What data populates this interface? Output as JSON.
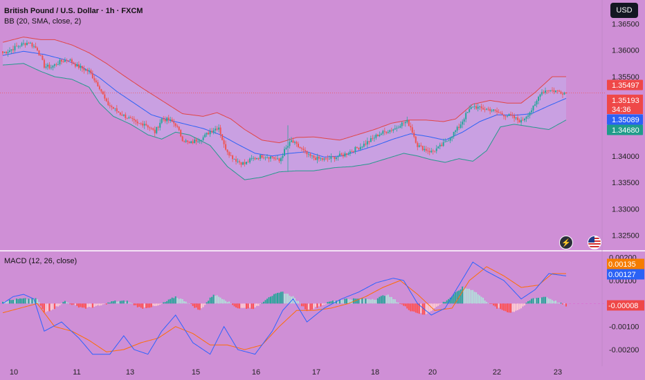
{
  "header": {
    "title": "British Pound / U.S. Dollar · 1h · FXCM",
    "indicator": "BB (20, SMA, close, 2)",
    "macd_label": "MACD (12, 26, close)",
    "currency_button": "USD"
  },
  "colors": {
    "background": "#cf8fd6",
    "up_candle": "#26a69a",
    "down_candle": "#ef5350",
    "bb_upper": "#e04545",
    "bb_lower": "#24998b",
    "bb_basis": "#2b62f5",
    "bb_fill": "#c7a6e6",
    "macd_line": "#2962ff",
    "signal_line": "#ff6d00",
    "hist_up_strong": "#26a69a",
    "hist_up_weak": "#b2dfdb",
    "hist_down_strong": "#ff5252",
    "hist_down_weak": "#ffcdd2"
  },
  "chart_data": [
    {
      "type": "candlestick",
      "title": "British Pound / U.S. Dollar · 1h · FXCM",
      "x_ticks": [
        "10",
        "11",
        "13",
        "15",
        "16",
        "17",
        "18",
        "20",
        "22",
        "23"
      ],
      "y_ticks": [
        "1.36500",
        "1.36000",
        "1.35500",
        "1.35000",
        "1.34500",
        "1.34000",
        "1.33500",
        "1.33000",
        "1.32500"
      ],
      "ylim": [
        1.3222,
        1.3695
      ],
      "close_anchors": [
        [
          0,
          1.3595
        ],
        [
          4,
          1.36
        ],
        [
          10,
          1.361
        ],
        [
          15,
          1.3615
        ],
        [
          20,
          1.3602
        ],
        [
          24,
          1.357
        ],
        [
          28,
          1.3568
        ],
        [
          33,
          1.3578
        ],
        [
          38,
          1.3583
        ],
        [
          43,
          1.357
        ],
        [
          50,
          1.356
        ],
        [
          56,
          1.353
        ],
        [
          60,
          1.35
        ],
        [
          64,
          1.349
        ],
        [
          68,
          1.348
        ],
        [
          72,
          1.3473
        ],
        [
          78,
          1.346
        ],
        [
          82,
          1.3462
        ],
        [
          88,
          1.3445
        ],
        [
          92,
          1.347
        ],
        [
          96,
          1.3468
        ],
        [
          100,
          1.346
        ],
        [
          104,
          1.3432
        ],
        [
          108,
          1.3423
        ],
        [
          112,
          1.343
        ],
        [
          116,
          1.3435
        ],
        [
          120,
          1.3447
        ],
        [
          125,
          1.3455
        ],
        [
          128,
          1.342
        ],
        [
          132,
          1.34
        ],
        [
          136,
          1.339
        ],
        [
          140,
          1.3385
        ],
        [
          144,
          1.3394
        ],
        [
          150,
          1.34
        ],
        [
          156,
          1.3398
        ],
        [
          160,
          1.339
        ],
        [
          163,
          1.341
        ],
        [
          167,
          1.3428
        ],
        [
          172,
          1.3415
        ],
        [
          177,
          1.34
        ],
        [
          182,
          1.3395
        ],
        [
          187,
          1.3393
        ],
        [
          192,
          1.3398
        ],
        [
          197,
          1.3402
        ],
        [
          202,
          1.341
        ],
        [
          207,
          1.3418
        ],
        [
          212,
          1.3428
        ],
        [
          217,
          1.344
        ],
        [
          222,
          1.3447
        ],
        [
          227,
          1.3452
        ],
        [
          230,
          1.346
        ],
        [
          234,
          1.3465
        ],
        [
          236,
          1.3455
        ],
        [
          240,
          1.342
        ],
        [
          244,
          1.3413
        ],
        [
          248,
          1.3408
        ],
        [
          252,
          1.3415
        ],
        [
          256,
          1.3425
        ],
        [
          260,
          1.344
        ],
        [
          264,
          1.3455
        ],
        [
          268,
          1.3478
        ],
        [
          272,
          1.3495
        ],
        [
          276,
          1.349
        ],
        [
          282,
          1.3488
        ],
        [
          288,
          1.348
        ],
        [
          294,
          1.3475
        ],
        [
          300,
          1.3465
        ],
        [
          304,
          1.348
        ],
        [
          308,
          1.3495
        ],
        [
          311,
          1.352
        ],
        [
          315,
          1.3525
        ],
        [
          320,
          1.3523
        ],
        [
          326,
          1.3519
        ]
      ],
      "bollinger_bands": {
        "label": "BB (20, SMA, close, 2)",
        "upper": [
          [
            0,
            1.3615
          ],
          [
            12,
            1.3625
          ],
          [
            22,
            1.362
          ],
          [
            30,
            1.362
          ],
          [
            40,
            1.361
          ],
          [
            50,
            1.3595
          ],
          [
            60,
            1.3575
          ],
          [
            70,
            1.3552
          ],
          [
            80,
            1.353
          ],
          [
            92,
            1.3505
          ],
          [
            104,
            1.348
          ],
          [
            116,
            1.3475
          ],
          [
            124,
            1.3482
          ],
          [
            132,
            1.347
          ],
          [
            140,
            1.345
          ],
          [
            150,
            1.343
          ],
          [
            160,
            1.3425
          ],
          [
            170,
            1.3435
          ],
          [
            180,
            1.3436
          ],
          [
            195,
            1.343
          ],
          [
            205,
            1.344
          ],
          [
            215,
            1.345
          ],
          [
            225,
            1.3462
          ],
          [
            235,
            1.3468
          ],
          [
            245,
            1.3468
          ],
          [
            255,
            1.3465
          ],
          [
            262,
            1.347
          ],
          [
            272,
            1.3498
          ],
          [
            282,
            1.3505
          ],
          [
            292,
            1.35
          ],
          [
            300,
            1.35
          ],
          [
            308,
            1.352
          ],
          [
            318,
            1.355
          ],
          [
            326,
            1.355
          ]
        ],
        "basis": [
          [
            0,
            1.359
          ],
          [
            12,
            1.3598
          ],
          [
            24,
            1.3592
          ],
          [
            36,
            1.3582
          ],
          [
            46,
            1.3568
          ],
          [
            56,
            1.3548
          ],
          [
            66,
            1.3522
          ],
          [
            76,
            1.35
          ],
          [
            86,
            1.3478
          ],
          [
            96,
            1.3468
          ],
          [
            106,
            1.346
          ],
          [
            116,
            1.3452
          ],
          [
            126,
            1.344
          ],
          [
            136,
            1.3422
          ],
          [
            146,
            1.3405
          ],
          [
            156,
            1.34
          ],
          [
            166,
            1.3405
          ],
          [
            176,
            1.3408
          ],
          [
            186,
            1.3398
          ],
          [
            196,
            1.34
          ],
          [
            206,
            1.341
          ],
          [
            216,
            1.342
          ],
          [
            226,
            1.3432
          ],
          [
            236,
            1.3442
          ],
          [
            246,
            1.3437
          ],
          [
            256,
            1.343
          ],
          [
            266,
            1.3445
          ],
          [
            276,
            1.3465
          ],
          [
            286,
            1.3478
          ],
          [
            296,
            1.3477
          ],
          [
            306,
            1.348
          ],
          [
            316,
            1.3495
          ],
          [
            326,
            1.3509
          ]
        ],
        "lower": [
          [
            0,
            1.3572
          ],
          [
            12,
            1.3575
          ],
          [
            22,
            1.356
          ],
          [
            30,
            1.355
          ],
          [
            40,
            1.3545
          ],
          [
            50,
            1.353
          ],
          [
            56,
            1.35
          ],
          [
            64,
            1.3475
          ],
          [
            74,
            1.346
          ],
          [
            84,
            1.344
          ],
          [
            92,
            1.3432
          ],
          [
            100,
            1.3445
          ],
          [
            108,
            1.344
          ],
          [
            120,
            1.342
          ],
          [
            130,
            1.338
          ],
          [
            140,
            1.3355
          ],
          [
            150,
            1.336
          ],
          [
            160,
            1.337
          ],
          [
            170,
            1.3372
          ],
          [
            180,
            1.3372
          ],
          [
            192,
            1.3378
          ],
          [
            202,
            1.338
          ],
          [
            212,
            1.3385
          ],
          [
            222,
            1.3395
          ],
          [
            232,
            1.3405
          ],
          [
            240,
            1.34
          ],
          [
            248,
            1.3393
          ],
          [
            256,
            1.3388
          ],
          [
            264,
            1.3395
          ],
          [
            272,
            1.339
          ],
          [
            280,
            1.341
          ],
          [
            288,
            1.3455
          ],
          [
            296,
            1.346
          ],
          [
            306,
            1.3455
          ],
          [
            316,
            1.345
          ],
          [
            326,
            1.3468
          ]
        ]
      },
      "price_labels": [
        {
          "value": "1.35497",
          "color": "#ef4848"
        },
        {
          "value": "1.35193",
          "color": "#ef4848"
        },
        {
          "value": "34:36",
          "color": "#ef4848"
        },
        {
          "value": "1.35089",
          "color": "#2b62f5"
        },
        {
          "value": "1.34680",
          "color": "#1f9c8a"
        }
      ]
    },
    {
      "type": "macd",
      "title": "MACD (12, 26, close)",
      "y_ticks": [
        "0.00200",
        "0.00100",
        "0.00000",
        "-0.00100",
        "-0.00200"
      ],
      "ylim": [
        -0.0026,
        0.0022
      ],
      "macd_anchors": [
        [
          0,
          0.0
        ],
        [
          6,
          0.0003
        ],
        [
          12,
          0.0004
        ],
        [
          18,
          0.0002
        ],
        [
          24,
          -0.0012
        ],
        [
          34,
          -0.0008
        ],
        [
          44,
          -0.0015
        ],
        [
          52,
          -0.0022
        ],
        [
          62,
          -0.0022
        ],
        [
          70,
          -0.0014
        ],
        [
          76,
          -0.002
        ],
        [
          84,
          -0.0022
        ],
        [
          92,
          -0.0012
        ],
        [
          100,
          -0.0005
        ],
        [
          110,
          -0.0017
        ],
        [
          120,
          -0.0022
        ],
        [
          128,
          -0.001
        ],
        [
          136,
          -0.002
        ],
        [
          146,
          -0.0022
        ],
        [
          156,
          -0.0012
        ],
        [
          162,
          -0.0003
        ],
        [
          168,
          0.0002
        ],
        [
          176,
          -0.0008
        ],
        [
          186,
          -0.0002
        ],
        [
          196,
          0.0002
        ],
        [
          206,
          0.0005
        ],
        [
          216,
          0.0009
        ],
        [
          226,
          0.0011
        ],
        [
          232,
          0.001
        ],
        [
          240,
          0.0
        ],
        [
          248,
          -0.0005
        ],
        [
          256,
          -0.0002
        ],
        [
          264,
          0.0008
        ],
        [
          272,
          0.0018
        ],
        [
          280,
          0.0014
        ],
        [
          290,
          0.001
        ],
        [
          300,
          0.0002
        ],
        [
          308,
          0.0006
        ],
        [
          316,
          0.0013
        ],
        [
          326,
          0.0012
        ]
      ],
      "signal_anchors": [
        [
          0,
          -0.0004
        ],
        [
          10,
          -0.0002
        ],
        [
          20,
          0.0
        ],
        [
          30,
          -0.001
        ],
        [
          40,
          -0.0012
        ],
        [
          50,
          -0.0016
        ],
        [
          60,
          -0.0021
        ],
        [
          70,
          -0.002
        ],
        [
          80,
          -0.0017
        ],
        [
          90,
          -0.0015
        ],
        [
          100,
          -0.001
        ],
        [
          110,
          -0.0013
        ],
        [
          120,
          -0.0018
        ],
        [
          130,
          -0.0018
        ],
        [
          140,
          -0.002
        ],
        [
          150,
          -0.0018
        ],
        [
          160,
          -0.001
        ],
        [
          170,
          -0.0003
        ],
        [
          180,
          -0.0003
        ],
        [
          190,
          -0.0002
        ],
        [
          200,
          0.0
        ],
        [
          210,
          0.0003
        ],
        [
          220,
          0.0007
        ],
        [
          230,
          0.001
        ],
        [
          240,
          0.0004
        ],
        [
          250,
          -0.0003
        ],
        [
          260,
          -0.0002
        ],
        [
          270,
          0.001
        ],
        [
          280,
          0.0016
        ],
        [
          290,
          0.0012
        ],
        [
          300,
          0.0007
        ],
        [
          310,
          0.0008
        ],
        [
          318,
          0.0013
        ],
        [
          326,
          0.0013
        ]
      ],
      "histogram_anchors": [
        [
          0,
          0.0001
        ],
        [
          10,
          0.0002
        ],
        [
          20,
          0.0002
        ],
        [
          24,
          -0.0004
        ],
        [
          30,
          -0.0002
        ],
        [
          36,
          0.0001
        ],
        [
          42,
          -0.0001
        ],
        [
          48,
          -0.0002
        ],
        [
          56,
          -0.0001
        ],
        [
          64,
          0.0001
        ],
        [
          72,
          0.0001
        ],
        [
          80,
          -0.0002
        ],
        [
          90,
          -0.0001
        ],
        [
          100,
          0.0003
        ],
        [
          106,
          0.0001
        ],
        [
          114,
          -0.0003
        ],
        [
          122,
          0.0004
        ],
        [
          128,
          0.0002
        ],
        [
          136,
          -0.0002
        ],
        [
          146,
          -0.0002
        ],
        [
          154,
          0.0003
        ],
        [
          162,
          0.0005
        ],
        [
          168,
          0.0003
        ],
        [
          176,
          -0.0003
        ],
        [
          184,
          -0.0001
        ],
        [
          190,
          0.0001
        ],
        [
          198,
          0.0002
        ],
        [
          206,
          0.0002
        ],
        [
          216,
          0.0002
        ],
        [
          222,
          0.0004
        ],
        [
          228,
          0.0001
        ],
        [
          236,
          -0.0003
        ],
        [
          244,
          -0.0005
        ],
        [
          252,
          -0.0001
        ],
        [
          258,
          0.0002
        ],
        [
          266,
          0.0007
        ],
        [
          272,
          0.0006
        ],
        [
          280,
          0.0001
        ],
        [
          286,
          -0.0002
        ],
        [
          294,
          -0.0004
        ],
        [
          300,
          -0.0002
        ],
        [
          306,
          0.0002
        ],
        [
          314,
          0.0003
        ],
        [
          326,
          -0.0001
        ]
      ],
      "price_labels": [
        {
          "value": "0.00135",
          "color": "#f57c00"
        },
        {
          "value": "0.00127",
          "color": "#2b62f5"
        },
        {
          "value": "-0.00008",
          "color": "#ef4848"
        }
      ]
    }
  ]
}
